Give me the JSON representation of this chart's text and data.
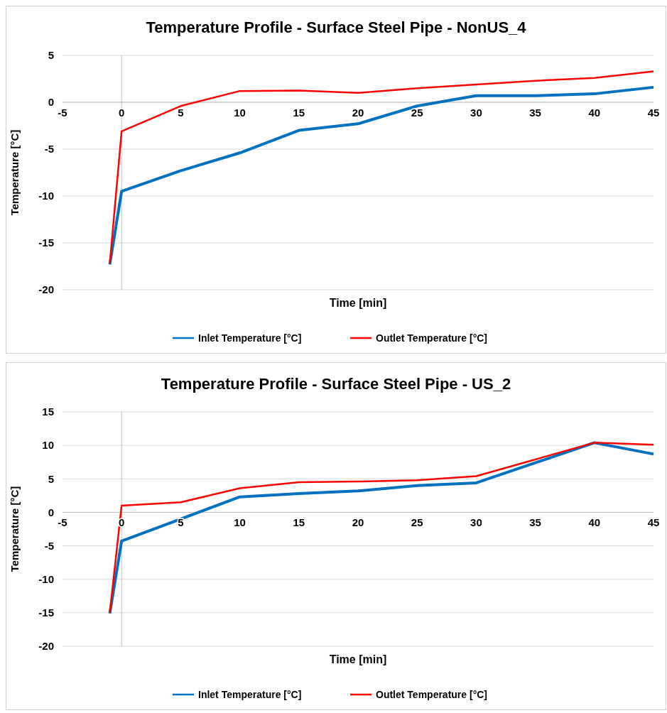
{
  "chart_data": [
    {
      "type": "line",
      "title": "Temperature Profile - Surface Steel Pipe - NonUS_4",
      "xlabel": "Time [min]",
      "ylabel": "Temperature [°C]",
      "xlim": [
        -5,
        45
      ],
      "xticks": [
        -5,
        0,
        5,
        10,
        15,
        20,
        25,
        30,
        35,
        40,
        45
      ],
      "ylim": [
        -20,
        5
      ],
      "yticks": [
        -20,
        -15,
        -10,
        -5,
        0,
        5
      ],
      "grid": "y",
      "legend": "bottom",
      "marker": "none",
      "line_style": "solid",
      "x": [
        -1,
        0,
        5,
        10,
        15,
        20,
        25,
        30,
        35,
        40,
        45
      ],
      "series": [
        {
          "name": "Inlet Temperature [°C]",
          "color": "#0070c0",
          "values": [
            -17.3,
            -9.5,
            -7.3,
            -5.4,
            -3.0,
            -2.3,
            -0.4,
            0.7,
            0.7,
            0.9,
            1.6
          ]
        },
        {
          "name": "Outlet Temperature [°C]",
          "color": "#ff0000",
          "values": [
            -17.2,
            -3.1,
            -0.4,
            1.2,
            1.25,
            1.0,
            1.5,
            1.9,
            2.3,
            2.6,
            3.3
          ]
        }
      ]
    },
    {
      "type": "line",
      "title": "Temperature Profile - Surface Steel Pipe - US_2",
      "xlabel": "Time [min]",
      "ylabel": "Temperature [°C]",
      "xlim": [
        -5,
        45
      ],
      "xticks": [
        -5,
        0,
        5,
        10,
        15,
        20,
        25,
        30,
        35,
        40,
        45
      ],
      "ylim": [
        -20,
        15
      ],
      "yticks": [
        -20,
        -15,
        -10,
        -5,
        0,
        5,
        10,
        15
      ],
      "grid": "y",
      "legend": "bottom",
      "marker": "none",
      "line_style": "solid",
      "x": [
        -1,
        0,
        5,
        10,
        15,
        20,
        25,
        30,
        35,
        40,
        45
      ],
      "series": [
        {
          "name": "Inlet Temperature [°C]",
          "color": "#0070c0",
          "values": [
            -15.1,
            -4.3,
            -1.0,
            2.3,
            2.8,
            3.2,
            4.0,
            4.4,
            7.4,
            10.4,
            8.7
          ]
        },
        {
          "name": "Outlet Temperature [°C]",
          "color": "#ff0000",
          "values": [
            -15.0,
            1.0,
            1.5,
            3.6,
            4.5,
            4.6,
            4.8,
            5.4,
            7.9,
            10.4,
            10.1
          ]
        }
      ]
    }
  ]
}
